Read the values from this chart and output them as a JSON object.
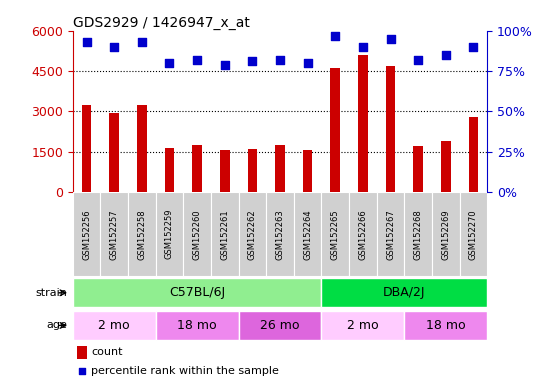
{
  "title": "GDS2929 / 1426947_x_at",
  "samples": [
    "GSM152256",
    "GSM152257",
    "GSM152258",
    "GSM152259",
    "GSM152260",
    "GSM152261",
    "GSM152262",
    "GSM152263",
    "GSM152264",
    "GSM152265",
    "GSM152266",
    "GSM152267",
    "GSM152268",
    "GSM152269",
    "GSM152270"
  ],
  "counts": [
    3250,
    2950,
    3250,
    1650,
    1750,
    1550,
    1600,
    1750,
    1550,
    4600,
    5100,
    4700,
    1700,
    1900,
    2800
  ],
  "percentile_ranks": [
    93,
    90,
    93,
    80,
    82,
    79,
    81,
    82,
    80,
    97,
    90,
    95,
    82,
    85,
    90
  ],
  "bar_color": "#cc0000",
  "dot_color": "#0000cc",
  "ylim_left": [
    0,
    6000
  ],
  "ylim_right": [
    0,
    100
  ],
  "yticks_left": [
    0,
    1500,
    3000,
    4500,
    6000
  ],
  "yticks_right": [
    0,
    25,
    50,
    75,
    100
  ],
  "strain_groups": [
    {
      "label": "C57BL/6J",
      "start": 0,
      "end": 9,
      "color": "#90ee90"
    },
    {
      "label": "DBA/2J",
      "start": 9,
      "end": 15,
      "color": "#00dd44"
    }
  ],
  "age_groups": [
    {
      "label": "2 mo",
      "start": 0,
      "end": 3,
      "color": "#ffccff"
    },
    {
      "label": "18 mo",
      "start": 3,
      "end": 6,
      "color": "#ee88ee"
    },
    {
      "label": "26 mo",
      "start": 6,
      "end": 9,
      "color": "#ee88ee"
    },
    {
      "label": "2 mo",
      "start": 9,
      "end": 12,
      "color": "#ffccff"
    },
    {
      "label": "18 mo",
      "start": 12,
      "end": 15,
      "color": "#ee88ee"
    }
  ],
  "strain_label": "strain",
  "age_label": "age",
  "legend_count_label": "count",
  "legend_pct_label": "percentile rank within the sample",
  "background_color": "#ffffff",
  "tick_box_color": "#d0d0d0"
}
